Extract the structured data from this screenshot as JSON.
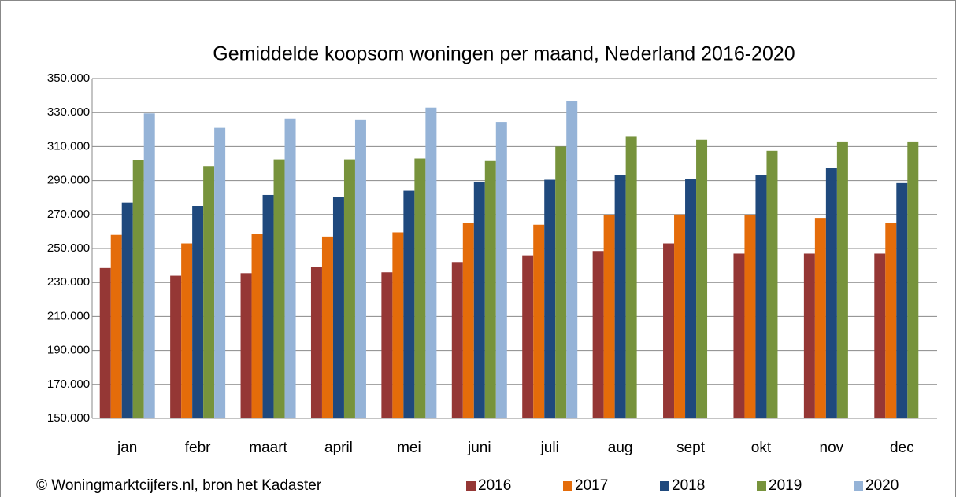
{
  "chart_data": {
    "type": "bar",
    "title": "Gemiddelde koopsom woningen per maand, Nederland  2016-2020",
    "categories": [
      "jan",
      "febr",
      "maart",
      "april",
      "mei",
      "juni",
      "juli",
      "aug",
      "sept",
      "okt",
      "nov",
      "dec"
    ],
    "series": [
      {
        "name": "2016",
        "color": "#953735",
        "values": [
          238500,
          234000,
          235500,
          239000,
          236000,
          242000,
          246000,
          248500,
          253000,
          247000,
          247000,
          247000
        ]
      },
      {
        "name": "2017",
        "color": "#e46c0a",
        "values": [
          258000,
          253000,
          258500,
          257000,
          259500,
          265000,
          264000,
          269500,
          270000,
          269500,
          268000,
          265000
        ]
      },
      {
        "name": "2018",
        "color": "#1f497d",
        "values": [
          277000,
          275000,
          281500,
          280500,
          284000,
          289000,
          290500,
          293500,
          291000,
          293500,
          297500,
          288500
        ]
      },
      {
        "name": "2019",
        "color": "#77933c",
        "values": [
          302000,
          298500,
          302500,
          302500,
          303000,
          301500,
          310000,
          316000,
          314000,
          307500,
          313000,
          313000
        ]
      },
      {
        "name": "2020",
        "color": "#95b3d7",
        "values": [
          329500,
          321000,
          326500,
          326000,
          333000,
          324500,
          337000,
          null,
          null,
          null,
          null,
          null
        ]
      }
    ],
    "ylim": [
      150000,
      350000
    ],
    "yticks": [
      {
        "value": 150000,
        "label": "150.000"
      },
      {
        "value": 170000,
        "label": "170.000"
      },
      {
        "value": 190000,
        "label": "190.000"
      },
      {
        "value": 210000,
        "label": "210.000"
      },
      {
        "value": 230000,
        "label": "230.000"
      },
      {
        "value": 250000,
        "label": "250.000"
      },
      {
        "value": 270000,
        "label": "270.000"
      },
      {
        "value": 290000,
        "label": "290.000"
      },
      {
        "value": 310000,
        "label": "310.000"
      },
      {
        "value": 330000,
        "label": "330.000"
      },
      {
        "value": 350000,
        "label": "350.000"
      }
    ],
    "grid": true,
    "annotation": "© Woningmarktcijfers.nl, bron het Kadaster",
    "legend": "bottom-right"
  }
}
